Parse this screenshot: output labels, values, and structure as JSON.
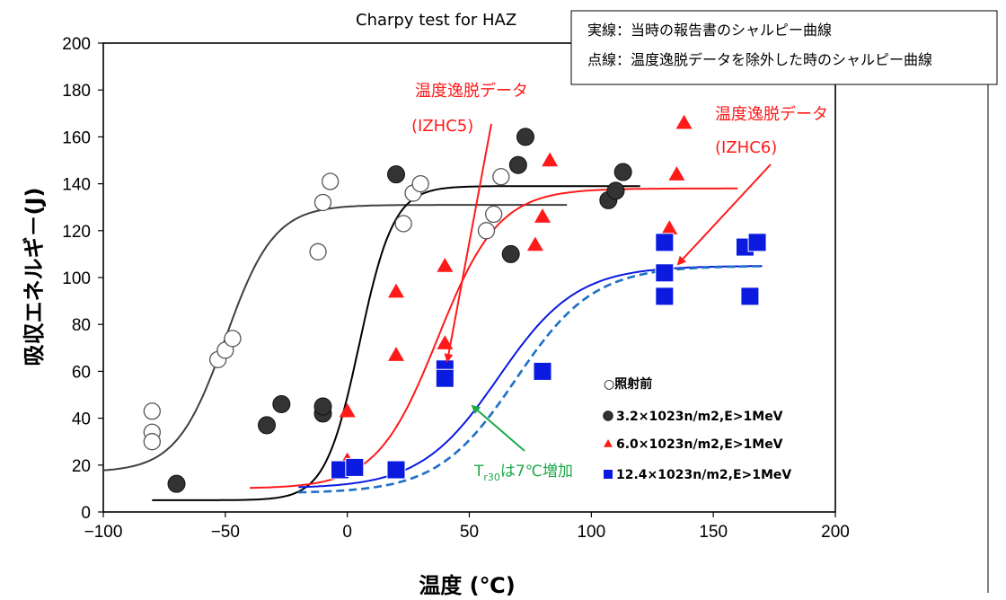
{
  "chart_data": {
    "type": "scatter",
    "title": "Charpy test for HAZ",
    "xlabel": "温度 (℃)",
    "ylabel": "吸収エネルギ－(J)",
    "xlim": [
      -100,
      200
    ],
    "ylim": [
      0,
      200
    ],
    "xticks": [
      "-100",
      "-50",
      "0",
      "50",
      "100",
      "150",
      "200"
    ],
    "yticks": [
      "0",
      "20",
      "40",
      "60",
      "80",
      "100",
      "120",
      "140",
      "160",
      "180",
      "200"
    ],
    "grid": false,
    "series": [
      {
        "name": "○照射前",
        "marker": "open-circle",
        "color": "#000000",
        "points": [
          [
            -80,
            43
          ],
          [
            -80,
            34
          ],
          [
            -80,
            30
          ],
          [
            -53,
            65
          ],
          [
            -50,
            69
          ],
          [
            -47,
            74
          ],
          [
            -12,
            111
          ],
          [
            -10,
            132
          ],
          [
            -7,
            141
          ],
          [
            23,
            123
          ],
          [
            27,
            136
          ],
          [
            30,
            140
          ],
          [
            57,
            120
          ],
          [
            60,
            127
          ],
          [
            63,
            143
          ]
        ],
        "curve": {
          "lower": 17,
          "upper": 131,
          "t0": -50,
          "width": 20,
          "x_from": -100,
          "x_to": 90,
          "color": "#404040",
          "dash": false
        }
      },
      {
        "name": "3.2×1023n/m2,E>1MeV",
        "marker": "filled-circle",
        "color": "#333333",
        "points": [
          [
            -70,
            12
          ],
          [
            -33,
            37
          ],
          [
            -27,
            46
          ],
          [
            -10,
            42
          ],
          [
            -10,
            45
          ],
          [
            20,
            144
          ],
          [
            67,
            110
          ],
          [
            70,
            148
          ],
          [
            73,
            160
          ],
          [
            107,
            133
          ],
          [
            110,
            137
          ],
          [
            113,
            145
          ]
        ],
        "curve": {
          "lower": 5,
          "upper": 139,
          "t0": 5,
          "width": 14,
          "x_from": -80,
          "x_to": 120,
          "color": "#000000",
          "dash": false
        }
      },
      {
        "name": "6.0×1023n/m2,E>1MeV",
        "marker": "triangle",
        "color": "#ff1a1a",
        "points": [
          [
            0,
            43
          ],
          [
            0,
            22
          ],
          [
            20,
            67
          ],
          [
            20,
            94
          ],
          [
            40,
            105
          ],
          [
            40,
            72
          ],
          [
            77,
            114
          ],
          [
            80,
            126
          ],
          [
            83,
            150
          ],
          [
            132,
            121
          ],
          [
            135,
            144
          ],
          [
            138,
            166
          ]
        ],
        "curve": {
          "lower": 10,
          "upper": 138,
          "t0": 37,
          "width": 25,
          "x_from": -40,
          "x_to": 160,
          "color": "#ff1a1a",
          "dash": false
        }
      },
      {
        "name": "12.4×1023n/m2,E>1MeV",
        "marker": "square",
        "color": "#0a1adf",
        "points": [
          [
            -3,
            18
          ],
          [
            3,
            19
          ],
          [
            20,
            18
          ],
          [
            40,
            61
          ],
          [
            40,
            57
          ],
          [
            80,
            60
          ],
          [
            130,
            115
          ],
          [
            130,
            102
          ],
          [
            130,
            92
          ],
          [
            163,
            113
          ],
          [
            165,
            92
          ],
          [
            168,
            115
          ]
        ],
        "curve": {
          "lower": 10,
          "upper": 105,
          "t0": 62,
          "width": 32,
          "x_from": -20,
          "x_to": 170,
          "color": "#0a1adf",
          "dash": false
        }
      },
      {
        "name": "",
        "marker": "none",
        "color": "#1f6fc4",
        "points": [],
        "curve": {
          "lower": 8,
          "upper": 105,
          "t0": 69,
          "width": 32,
          "x_from": -20,
          "x_to": 170,
          "color": "#1f6fc4",
          "dash": true
        }
      }
    ],
    "legend_position": "bottom-right-inside",
    "annotations": {
      "red1": {
        "line1": "温度逸脱データ",
        "line2": "(IZHC5)"
      },
      "red2": {
        "line1": "温度逸脱データ",
        "line2": "(IZHC6)"
      },
      "green_pre": "T",
      "green_sub": "r30",
      "green_post": "は7℃増加"
    },
    "note_box": {
      "line1": "実線：当時の報告書のシャルピー曲線",
      "line2": "点線：温度逸脱データを除外した時のシャルピー曲線"
    }
  }
}
